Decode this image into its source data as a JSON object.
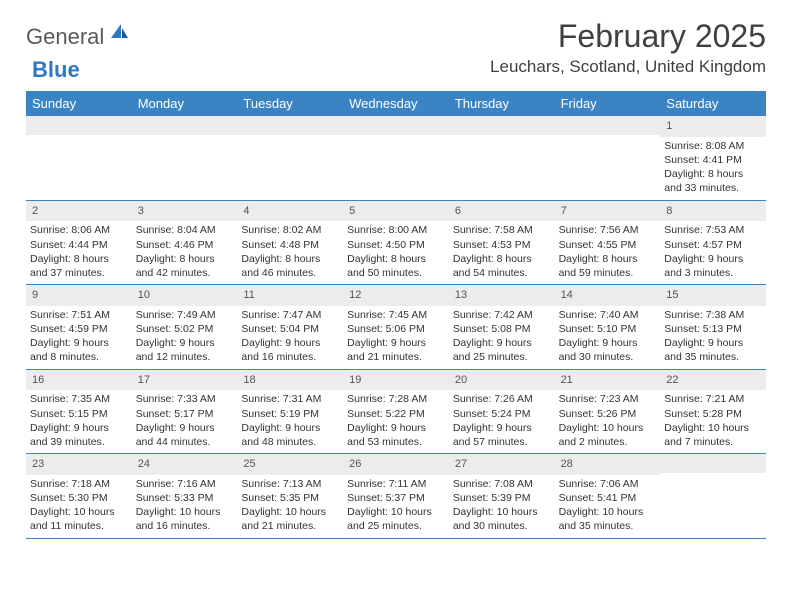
{
  "logo": {
    "text1": "General",
    "text2": "Blue"
  },
  "title": "February 2025",
  "location": "Leuchars, Scotland, United Kingdom",
  "colors": {
    "header_bg": "#3b84c4",
    "header_text": "#ffffff",
    "daynum_bg": "#ececec",
    "border": "#3b84c4",
    "logo_blue": "#2f78c2",
    "logo_gray": "#5a5a5a"
  },
  "weekdays": [
    "Sunday",
    "Monday",
    "Tuesday",
    "Wednesday",
    "Thursday",
    "Friday",
    "Saturday"
  ],
  "weeks": [
    [
      null,
      null,
      null,
      null,
      null,
      null,
      {
        "n": "1",
        "sr": "Sunrise: 8:08 AM",
        "ss": "Sunset: 4:41 PM",
        "dl": "Daylight: 8 hours and 33 minutes."
      }
    ],
    [
      {
        "n": "2",
        "sr": "Sunrise: 8:06 AM",
        "ss": "Sunset: 4:44 PM",
        "dl": "Daylight: 8 hours and 37 minutes."
      },
      {
        "n": "3",
        "sr": "Sunrise: 8:04 AM",
        "ss": "Sunset: 4:46 PM",
        "dl": "Daylight: 8 hours and 42 minutes."
      },
      {
        "n": "4",
        "sr": "Sunrise: 8:02 AM",
        "ss": "Sunset: 4:48 PM",
        "dl": "Daylight: 8 hours and 46 minutes."
      },
      {
        "n": "5",
        "sr": "Sunrise: 8:00 AM",
        "ss": "Sunset: 4:50 PM",
        "dl": "Daylight: 8 hours and 50 minutes."
      },
      {
        "n": "6",
        "sr": "Sunrise: 7:58 AM",
        "ss": "Sunset: 4:53 PM",
        "dl": "Daylight: 8 hours and 54 minutes."
      },
      {
        "n": "7",
        "sr": "Sunrise: 7:56 AM",
        "ss": "Sunset: 4:55 PM",
        "dl": "Daylight: 8 hours and 59 minutes."
      },
      {
        "n": "8",
        "sr": "Sunrise: 7:53 AM",
        "ss": "Sunset: 4:57 PM",
        "dl": "Daylight: 9 hours and 3 minutes."
      }
    ],
    [
      {
        "n": "9",
        "sr": "Sunrise: 7:51 AM",
        "ss": "Sunset: 4:59 PM",
        "dl": "Daylight: 9 hours and 8 minutes."
      },
      {
        "n": "10",
        "sr": "Sunrise: 7:49 AM",
        "ss": "Sunset: 5:02 PM",
        "dl": "Daylight: 9 hours and 12 minutes."
      },
      {
        "n": "11",
        "sr": "Sunrise: 7:47 AM",
        "ss": "Sunset: 5:04 PM",
        "dl": "Daylight: 9 hours and 16 minutes."
      },
      {
        "n": "12",
        "sr": "Sunrise: 7:45 AM",
        "ss": "Sunset: 5:06 PM",
        "dl": "Daylight: 9 hours and 21 minutes."
      },
      {
        "n": "13",
        "sr": "Sunrise: 7:42 AM",
        "ss": "Sunset: 5:08 PM",
        "dl": "Daylight: 9 hours and 25 minutes."
      },
      {
        "n": "14",
        "sr": "Sunrise: 7:40 AM",
        "ss": "Sunset: 5:10 PM",
        "dl": "Daylight: 9 hours and 30 minutes."
      },
      {
        "n": "15",
        "sr": "Sunrise: 7:38 AM",
        "ss": "Sunset: 5:13 PM",
        "dl": "Daylight: 9 hours and 35 minutes."
      }
    ],
    [
      {
        "n": "16",
        "sr": "Sunrise: 7:35 AM",
        "ss": "Sunset: 5:15 PM",
        "dl": "Daylight: 9 hours and 39 minutes."
      },
      {
        "n": "17",
        "sr": "Sunrise: 7:33 AM",
        "ss": "Sunset: 5:17 PM",
        "dl": "Daylight: 9 hours and 44 minutes."
      },
      {
        "n": "18",
        "sr": "Sunrise: 7:31 AM",
        "ss": "Sunset: 5:19 PM",
        "dl": "Daylight: 9 hours and 48 minutes."
      },
      {
        "n": "19",
        "sr": "Sunrise: 7:28 AM",
        "ss": "Sunset: 5:22 PM",
        "dl": "Daylight: 9 hours and 53 minutes."
      },
      {
        "n": "20",
        "sr": "Sunrise: 7:26 AM",
        "ss": "Sunset: 5:24 PM",
        "dl": "Daylight: 9 hours and 57 minutes."
      },
      {
        "n": "21",
        "sr": "Sunrise: 7:23 AM",
        "ss": "Sunset: 5:26 PM",
        "dl": "Daylight: 10 hours and 2 minutes."
      },
      {
        "n": "22",
        "sr": "Sunrise: 7:21 AM",
        "ss": "Sunset: 5:28 PM",
        "dl": "Daylight: 10 hours and 7 minutes."
      }
    ],
    [
      {
        "n": "23",
        "sr": "Sunrise: 7:18 AM",
        "ss": "Sunset: 5:30 PM",
        "dl": "Daylight: 10 hours and 11 minutes."
      },
      {
        "n": "24",
        "sr": "Sunrise: 7:16 AM",
        "ss": "Sunset: 5:33 PM",
        "dl": "Daylight: 10 hours and 16 minutes."
      },
      {
        "n": "25",
        "sr": "Sunrise: 7:13 AM",
        "ss": "Sunset: 5:35 PM",
        "dl": "Daylight: 10 hours and 21 minutes."
      },
      {
        "n": "26",
        "sr": "Sunrise: 7:11 AM",
        "ss": "Sunset: 5:37 PM",
        "dl": "Daylight: 10 hours and 25 minutes."
      },
      {
        "n": "27",
        "sr": "Sunrise: 7:08 AM",
        "ss": "Sunset: 5:39 PM",
        "dl": "Daylight: 10 hours and 30 minutes."
      },
      {
        "n": "28",
        "sr": "Sunrise: 7:06 AM",
        "ss": "Sunset: 5:41 PM",
        "dl": "Daylight: 10 hours and 35 minutes."
      },
      null
    ]
  ]
}
